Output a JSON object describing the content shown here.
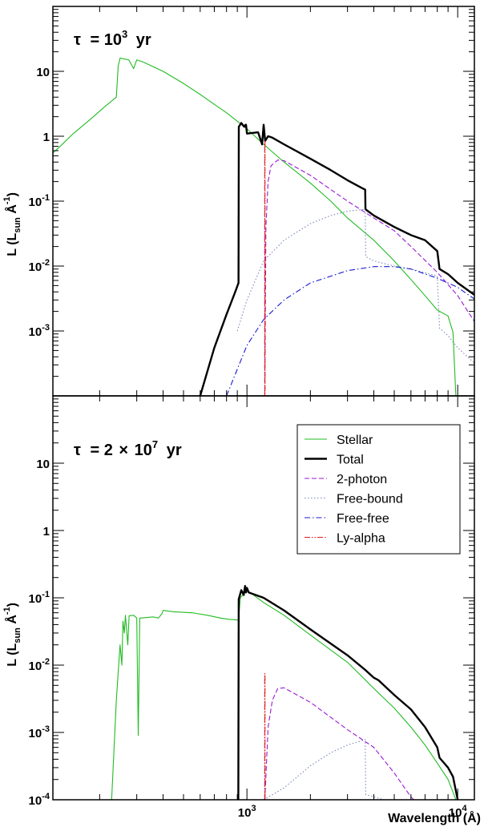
{
  "figure": {
    "x_axis_label": "Wavelength (Å)"
  },
  "colors": {
    "stellar": "#22bb22",
    "total": "#000000",
    "two_photon": "#9a1ad6",
    "free_bound": "#7788b8",
    "free_free": "#1a1ad6",
    "ly_alpha": "#e01a1a"
  },
  "legend": {
    "placement": "top-right of lower panel",
    "entries": [
      {
        "label": "Stellar",
        "series": "stellar",
        "style": "solid"
      },
      {
        "label": "Total",
        "series": "total",
        "style": "solid-thick"
      },
      {
        "label": "2-photon",
        "series": "two_photon",
        "style": "dashed"
      },
      {
        "label": "Free-bound",
        "series": "free_bound",
        "style": "dotted"
      },
      {
        "label": "Free-free",
        "series": "free_free",
        "style": "dashdot"
      },
      {
        "label": "Ly-alpha",
        "series": "ly_alpha",
        "style": "dashdotdot"
      }
    ]
  },
  "chart_data": [
    {
      "type": "line",
      "panel": "top",
      "title": {
        "tau": "τ",
        "eq": "= 10",
        "exp": "3",
        "unit": "yr"
      },
      "ylabel": {
        "main": "L (L",
        "sub": "sun",
        "mid": " Å",
        "sup": "-1",
        "close": ")"
      },
      "xscale": "log",
      "yscale": "log",
      "xlim": [
        120,
        12000
      ],
      "ylim": [
        0.0001,
        100
      ],
      "y_tick_labels": [
        {
          "v": 0.001,
          "base": "10",
          "exp": "-3"
        },
        {
          "v": 0.01,
          "base": "10",
          "exp": "-2"
        },
        {
          "v": 0.1,
          "base": "10",
          "exp": "-1"
        },
        {
          "v": 1,
          "base": "1",
          "exp": ""
        },
        {
          "v": 10,
          "base": "10",
          "exp": ""
        }
      ],
      "series": [
        {
          "key": "stellar",
          "points": [
            [
              120,
              0.55
            ],
            [
              130,
              0.7
            ],
            [
              150,
              1.1
            ],
            [
              180,
              1.8
            ],
            [
              210,
              2.8
            ],
            [
              240,
              4.0
            ],
            [
              245,
              12
            ],
            [
              250,
              16
            ],
            [
              275,
              15
            ],
            [
              290,
              11
            ],
            [
              300,
              15
            ],
            [
              320,
              14
            ],
            [
              400,
              10
            ],
            [
              500,
              6.5
            ],
            [
              600,
              4.4
            ],
            [
              700,
              3.1
            ],
            [
              800,
              2.3
            ],
            [
              900,
              1.7
            ],
            [
              1000,
              1.3
            ],
            [
              1200,
              0.75
            ],
            [
              1500,
              0.4
            ],
            [
              2000,
              0.19
            ],
            [
              2500,
              0.1
            ],
            [
              3000,
              0.055
            ],
            [
              4000,
              0.025
            ],
            [
              5000,
              0.012
            ],
            [
              6000,
              0.0062
            ],
            [
              7000,
              0.0035
            ],
            [
              8000,
              0.0021
            ],
            [
              9000,
              0.0017
            ],
            [
              9500,
              0.00095
            ],
            [
              9800,
              0.0001
            ]
          ]
        },
        {
          "key": "total",
          "points": [
            [
              600,
              0.0001
            ],
            [
              700,
              0.00055
            ],
            [
              800,
              0.0018
            ],
            [
              880,
              0.004
            ],
            [
              912,
              0.0055
            ],
            [
              915,
              1.4
            ],
            [
              940,
              1.6
            ],
            [
              970,
              1.4
            ],
            [
              985,
              1.5
            ],
            [
              990,
              1.5
            ],
            [
              1000,
              1.1
            ],
            [
              1130,
              1.15
            ],
            [
              1180,
              0.75
            ],
            [
              1200,
              1.5
            ],
            [
              1220,
              0.85
            ],
            [
              1260,
              1.0
            ],
            [
              1320,
              0.95
            ],
            [
              1500,
              0.75
            ],
            [
              2000,
              0.45
            ],
            [
              2500,
              0.3
            ],
            [
              3000,
              0.21
            ],
            [
              3500,
              0.16
            ],
            [
              3640,
              0.15
            ],
            [
              3650,
              0.075
            ],
            [
              4000,
              0.06
            ],
            [
              5000,
              0.04
            ],
            [
              6000,
              0.03
            ],
            [
              7000,
              0.025
            ],
            [
              8000,
              0.017
            ],
            [
              8200,
              0.009
            ],
            [
              9000,
              0.0075
            ],
            [
              10000,
              0.0055
            ],
            [
              12000,
              0.0036
            ]
          ]
        },
        {
          "key": "two_photon",
          "points": [
            [
              1216,
              0.00012
            ],
            [
              1230,
              0.04
            ],
            [
              1260,
              0.2
            ],
            [
              1300,
              0.35
            ],
            [
              1400,
              0.43
            ],
            [
              1500,
              0.42
            ],
            [
              2000,
              0.25
            ],
            [
              3000,
              0.1
            ],
            [
              4000,
              0.055
            ],
            [
              5000,
              0.035
            ],
            [
              6000,
              0.02
            ],
            [
              8000,
              0.008
            ],
            [
              10000,
              0.0035
            ],
            [
              12000,
              0.0014
            ]
          ]
        },
        {
          "key": "free_bound",
          "points": [
            [
              900,
              0.001
            ],
            [
              1000,
              0.003
            ],
            [
              1200,
              0.012
            ],
            [
              1500,
              0.025
            ],
            [
              2000,
              0.045
            ],
            [
              2500,
              0.06
            ],
            [
              3000,
              0.07
            ],
            [
              3640,
              0.075
            ],
            [
              3660,
              0.014
            ],
            [
              4000,
              0.012
            ],
            [
              5000,
              0.01
            ],
            [
              6000,
              0.009
            ],
            [
              8000,
              0.007
            ],
            [
              8200,
              0.0011
            ],
            [
              9000,
              0.00085
            ],
            [
              10000,
              0.00055
            ],
            [
              12000,
              0.00032
            ]
          ]
        },
        {
          "key": "free_free",
          "points": [
            [
              800,
              0.0001
            ],
            [
              1000,
              0.0006
            ],
            [
              1200,
              0.0015
            ],
            [
              1500,
              0.003
            ],
            [
              2000,
              0.0055
            ],
            [
              3000,
              0.0085
            ],
            [
              4000,
              0.0098
            ],
            [
              5000,
              0.0098
            ],
            [
              6000,
              0.009
            ],
            [
              8000,
              0.0065
            ],
            [
              10000,
              0.0047
            ],
            [
              12000,
              0.0031
            ]
          ]
        },
        {
          "key": "ly_alpha",
          "points": [
            [
              1214,
              0.0001
            ],
            [
              1214,
              0.85
            ],
            [
              1218,
              0.85
            ],
            [
              1218,
              0.0001
            ]
          ]
        }
      ]
    },
    {
      "type": "line",
      "panel": "bottom",
      "title": {
        "tau": "τ",
        "eq": "= 2",
        "times": "×",
        "ten": "10",
        "exp": "7",
        "unit": "yr"
      },
      "ylabel": {
        "main": "L (L",
        "sub": "sun",
        "mid": " Å",
        "sup": "-1",
        "close": ")"
      },
      "xscale": "log",
      "yscale": "log",
      "xlim": [
        120,
        12000
      ],
      "ylim": [
        0.0001,
        100
      ],
      "x_tick_labels": [
        {
          "v": 1000,
          "base": "10",
          "exp": "3"
        },
        {
          "v": 10000,
          "base": "10",
          "exp": "4"
        }
      ],
      "y_tick_labels": [
        {
          "v": 0.0001,
          "base": "10",
          "exp": "-4"
        },
        {
          "v": 0.001,
          "base": "10",
          "exp": "-3"
        },
        {
          "v": 0.01,
          "base": "10",
          "exp": "-2"
        },
        {
          "v": 0.1,
          "base": "10",
          "exp": "-1"
        },
        {
          "v": 1,
          "base": "1",
          "exp": ""
        },
        {
          "v": 10,
          "base": "10",
          "exp": ""
        }
      ],
      "series": [
        {
          "key": "stellar",
          "points": [
            [
              228,
              0.0001
            ],
            [
              240,
              0.003
            ],
            [
              250,
              0.02
            ],
            [
              255,
              0.01
            ],
            [
              258,
              0.045
            ],
            [
              262,
              0.03
            ],
            [
              265,
              0.055
            ],
            [
              272,
              0.02
            ],
            [
              276,
              0.054
            ],
            [
              290,
              0.055
            ],
            [
              300,
              0.05
            ],
            [
              305,
              0.0009
            ],
            [
              310,
              0.05
            ],
            [
              360,
              0.052
            ],
            [
              380,
              0.05
            ],
            [
              395,
              0.058
            ],
            [
              400,
              0.065
            ],
            [
              450,
              0.062
            ],
            [
              550,
              0.06
            ],
            [
              650,
              0.055
            ],
            [
              750,
              0.05
            ],
            [
              820,
              0.048
            ],
            [
              900,
              0.047
            ],
            [
              912,
              0.045
            ],
            [
              930,
              0.1
            ],
            [
              1000,
              0.13
            ],
            [
              1200,
              0.085
            ],
            [
              1500,
              0.055
            ],
            [
              2000,
              0.028
            ],
            [
              3000,
              0.011
            ],
            [
              4000,
              0.0045
            ],
            [
              5000,
              0.0023
            ],
            [
              6000,
              0.0012
            ],
            [
              7000,
              0.00065
            ],
            [
              8000,
              0.00035
            ],
            [
              9000,
              0.0002
            ],
            [
              9500,
              0.00013
            ],
            [
              9800,
              0.0001
            ]
          ]
        },
        {
          "key": "total",
          "points": [
            [
              910,
              0.0001
            ],
            [
              914,
              0.095
            ],
            [
              940,
              0.13
            ],
            [
              965,
              0.11
            ],
            [
              980,
              0.15
            ],
            [
              990,
              0.12
            ],
            [
              1000,
              0.14
            ],
            [
              1020,
              0.12
            ],
            [
              1200,
              0.1
            ],
            [
              1500,
              0.065
            ],
            [
              2000,
              0.034
            ],
            [
              3000,
              0.014
            ],
            [
              3640,
              0.0085
            ],
            [
              4000,
              0.0065
            ],
            [
              4200,
              0.006
            ],
            [
              5000,
              0.0036
            ],
            [
              6000,
              0.0022
            ],
            [
              7000,
              0.0012
            ],
            [
              8000,
              0.0006
            ],
            [
              8200,
              0.00042
            ],
            [
              9000,
              0.0003
            ],
            [
              9500,
              0.00022
            ],
            [
              10000,
              0.0001
            ]
          ]
        },
        {
          "key": "two_photon",
          "points": [
            [
              1216,
              0.0001
            ],
            [
              1260,
              0.0012
            ],
            [
              1320,
              0.003
            ],
            [
              1400,
              0.0045
            ],
            [
              1500,
              0.0046
            ],
            [
              2000,
              0.0028
            ],
            [
              3000,
              0.0011
            ],
            [
              4000,
              0.0006
            ],
            [
              5000,
              0.00025
            ],
            [
              6000,
              0.00011
            ],
            [
              6200,
              0.0001
            ]
          ]
        },
        {
          "key": "free_bound",
          "points": [
            [
              1200,
              0.0001
            ],
            [
              1500,
              0.00015
            ],
            [
              2000,
              0.00032
            ],
            [
              2500,
              0.0005
            ],
            [
              3000,
              0.00065
            ],
            [
              3640,
              0.00078
            ],
            [
              3660,
              0.00012
            ],
            [
              4000,
              0.00011
            ],
            [
              4500,
              0.0001
            ]
          ]
        },
        {
          "key": "ly_alpha",
          "points": [
            [
              1214,
              0.0001
            ],
            [
              1214,
              0.0075
            ],
            [
              1218,
              0.0075
            ],
            [
              1218,
              0.0001
            ]
          ]
        }
      ]
    }
  ]
}
